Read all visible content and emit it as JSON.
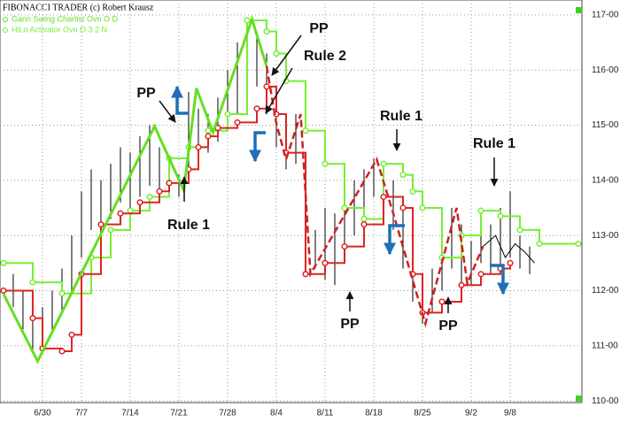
{
  "chart_data": {
    "type": "line",
    "title": "FIBONACCI TRADER (c) Robert Krausz",
    "xlim": [
      -0.36,
      59.18
    ],
    "ylim": [
      109.97,
      117.27
    ],
    "xticks": [
      {
        "value": 4,
        "label": "6/30"
      },
      {
        "value": 8,
        "label": "7/7"
      },
      {
        "value": 13,
        "label": "7/14"
      },
      {
        "value": 18,
        "label": "7/21"
      },
      {
        "value": 23,
        "label": "7/28"
      },
      {
        "value": 28,
        "label": "8/4"
      },
      {
        "value": 33,
        "label": "8/11"
      },
      {
        "value": 38,
        "label": "8/18"
      },
      {
        "value": 43,
        "label": "8/25"
      },
      {
        "value": 48,
        "label": "9/2"
      },
      {
        "value": 52,
        "label": "9/8"
      }
    ],
    "yticks": [
      {
        "value": 110,
        "label": "110-00"
      },
      {
        "value": 111,
        "label": "111-00"
      },
      {
        "value": 112,
        "label": "112-00"
      },
      {
        "value": 113,
        "label": "113-00"
      },
      {
        "value": 114,
        "label": "114-00"
      },
      {
        "value": 115,
        "label": "115-00"
      },
      {
        "value": 116,
        "label": "116-00"
      },
      {
        "value": 117,
        "label": "117-00"
      }
    ],
    "grid": true,
    "bars": {
      "color": "#000000",
      "x": [
        1,
        2,
        3,
        4,
        5,
        6,
        7,
        8,
        9,
        10,
        11,
        12,
        13,
        14,
        15,
        16,
        17,
        18,
        19,
        20,
        21,
        22,
        23,
        24,
        25,
        26,
        27,
        28,
        29,
        30,
        31,
        32,
        33,
        34,
        35,
        36,
        37,
        38,
        39,
        40,
        41,
        42,
        43,
        44,
        45,
        46,
        47,
        48,
        49,
        50,
        51,
        52,
        53,
        54
      ],
      "high": [
        112.3,
        112.0,
        111.6,
        111.7,
        112.0,
        112.4,
        113.0,
        113.8,
        114.2,
        114.0,
        114.3,
        114.6,
        114.5,
        114.8,
        115.0,
        114.6,
        114.4,
        114.1,
        115.6,
        115.3,
        115.2,
        115.5,
        116.0,
        116.5,
        116.9,
        116.6,
        116.3,
        115.3,
        114.8,
        115.2,
        114.3,
        113.1,
        113.5,
        113.4,
        113.8,
        114.0,
        114.2,
        114.4,
        114.3,
        114.0,
        113.5,
        112.5,
        112.2,
        112.4,
        113.0,
        113.5,
        113.2,
        112.9,
        113.3,
        113.2,
        113.5,
        113.8,
        113.0,
        112.8
      ],
      "low": [
        111.7,
        111.3,
        110.9,
        111.0,
        111.2,
        111.6,
        112.0,
        112.6,
        113.1,
        112.9,
        113.3,
        113.6,
        113.5,
        113.7,
        113.9,
        113.6,
        113.8,
        113.7,
        114.0,
        114.4,
        114.5,
        114.7,
        115.0,
        115.2,
        115.6,
        115.7,
        115.2,
        114.6,
        114.2,
        114.3,
        112.3,
        112.4,
        112.2,
        112.1,
        112.7,
        113.0,
        113.3,
        113.7,
        113.6,
        113.1,
        112.4,
        111.8,
        111.4,
        111.6,
        112.0,
        112.4,
        112.1,
        112.1,
        112.5,
        112.3,
        112.4,
        112.6,
        112.4,
        112.3
      ]
    },
    "series": [
      {
        "name": "Gann Swing Chartist Ovn O D",
        "color": "#66dd22",
        "style": "line",
        "width": 3,
        "x": [
          0,
          3.5,
          15.5,
          18.5,
          19.8,
          21.5,
          25.5,
          27
        ],
        "values": [
          111.94,
          110.72,
          114.98,
          113.82,
          115.67,
          114.87,
          116.92,
          116.07
        ]
      },
      {
        "color": "#cc2222",
        "style": "dashed",
        "width": 2.5,
        "x": [
          27,
          28,
          29,
          30.5,
          31.5,
          38.3,
          40,
          43.3,
          46.5,
          47.6,
          49.2
        ],
        "values": [
          116.07,
          115.03,
          114.38,
          115.2,
          112.3,
          114.38,
          113.4,
          111.4,
          113.5,
          112.13,
          112.8
        ]
      },
      {
        "color": "#000000",
        "style": "line",
        "width": 1,
        "x": [
          49.2,
          50.5,
          51.5,
          52.5,
          53.5,
          54.5
        ],
        "values": [
          112.8,
          113.0,
          112.6,
          112.85,
          112.7,
          112.5
        ]
      },
      {
        "name": "HiLo Activator Ovn O 3 2 N",
        "color": "#77ee33",
        "style": "step",
        "width": 2,
        "x": [
          0,
          3,
          6,
          9,
          11,
          13,
          15,
          17,
          19,
          21,
          23,
          25,
          27,
          28,
          29,
          31,
          33,
          35,
          37,
          39,
          41,
          42,
          43,
          45,
          47,
          49,
          51,
          53,
          55,
          59
        ],
        "values": [
          112.5,
          112.15,
          111.95,
          112.6,
          113.1,
          113.45,
          113.7,
          114.4,
          114.6,
          114.9,
          115.2,
          116.9,
          116.7,
          116.3,
          115.8,
          114.9,
          114.3,
          113.5,
          113.3,
          114.3,
          114.1,
          113.8,
          113.5,
          112.6,
          113.0,
          113.45,
          113.35,
          113.1,
          112.85,
          112.85
        ]
      },
      {
        "color": "#dd2222",
        "style": "step",
        "width": 2,
        "x": [
          0,
          3,
          4,
          6,
          7,
          8,
          10,
          12,
          14,
          16,
          17,
          19,
          20,
          21,
          22,
          24,
          26,
          27,
          28,
          29,
          31,
          33,
          35,
          37,
          39,
          41,
          42,
          43,
          45,
          47,
          49,
          51,
          52
        ],
        "values": [
          112.0,
          111.5,
          110.95,
          110.9,
          111.2,
          112.3,
          113.2,
          113.4,
          113.6,
          113.8,
          113.95,
          114.2,
          114.6,
          114.8,
          114.95,
          115.05,
          115.3,
          115.7,
          115.2,
          114.5,
          112.3,
          112.5,
          112.8,
          113.2,
          113.7,
          113.5,
          112.3,
          111.6,
          111.8,
          112.1,
          112.3,
          112.4,
          112.5
        ]
      }
    ],
    "annotations": [
      "PP",
      "Rule 2",
      "PP",
      "Rule 1",
      "Rule 1",
      "Rule 1",
      "PP",
      "PP"
    ]
  }
}
